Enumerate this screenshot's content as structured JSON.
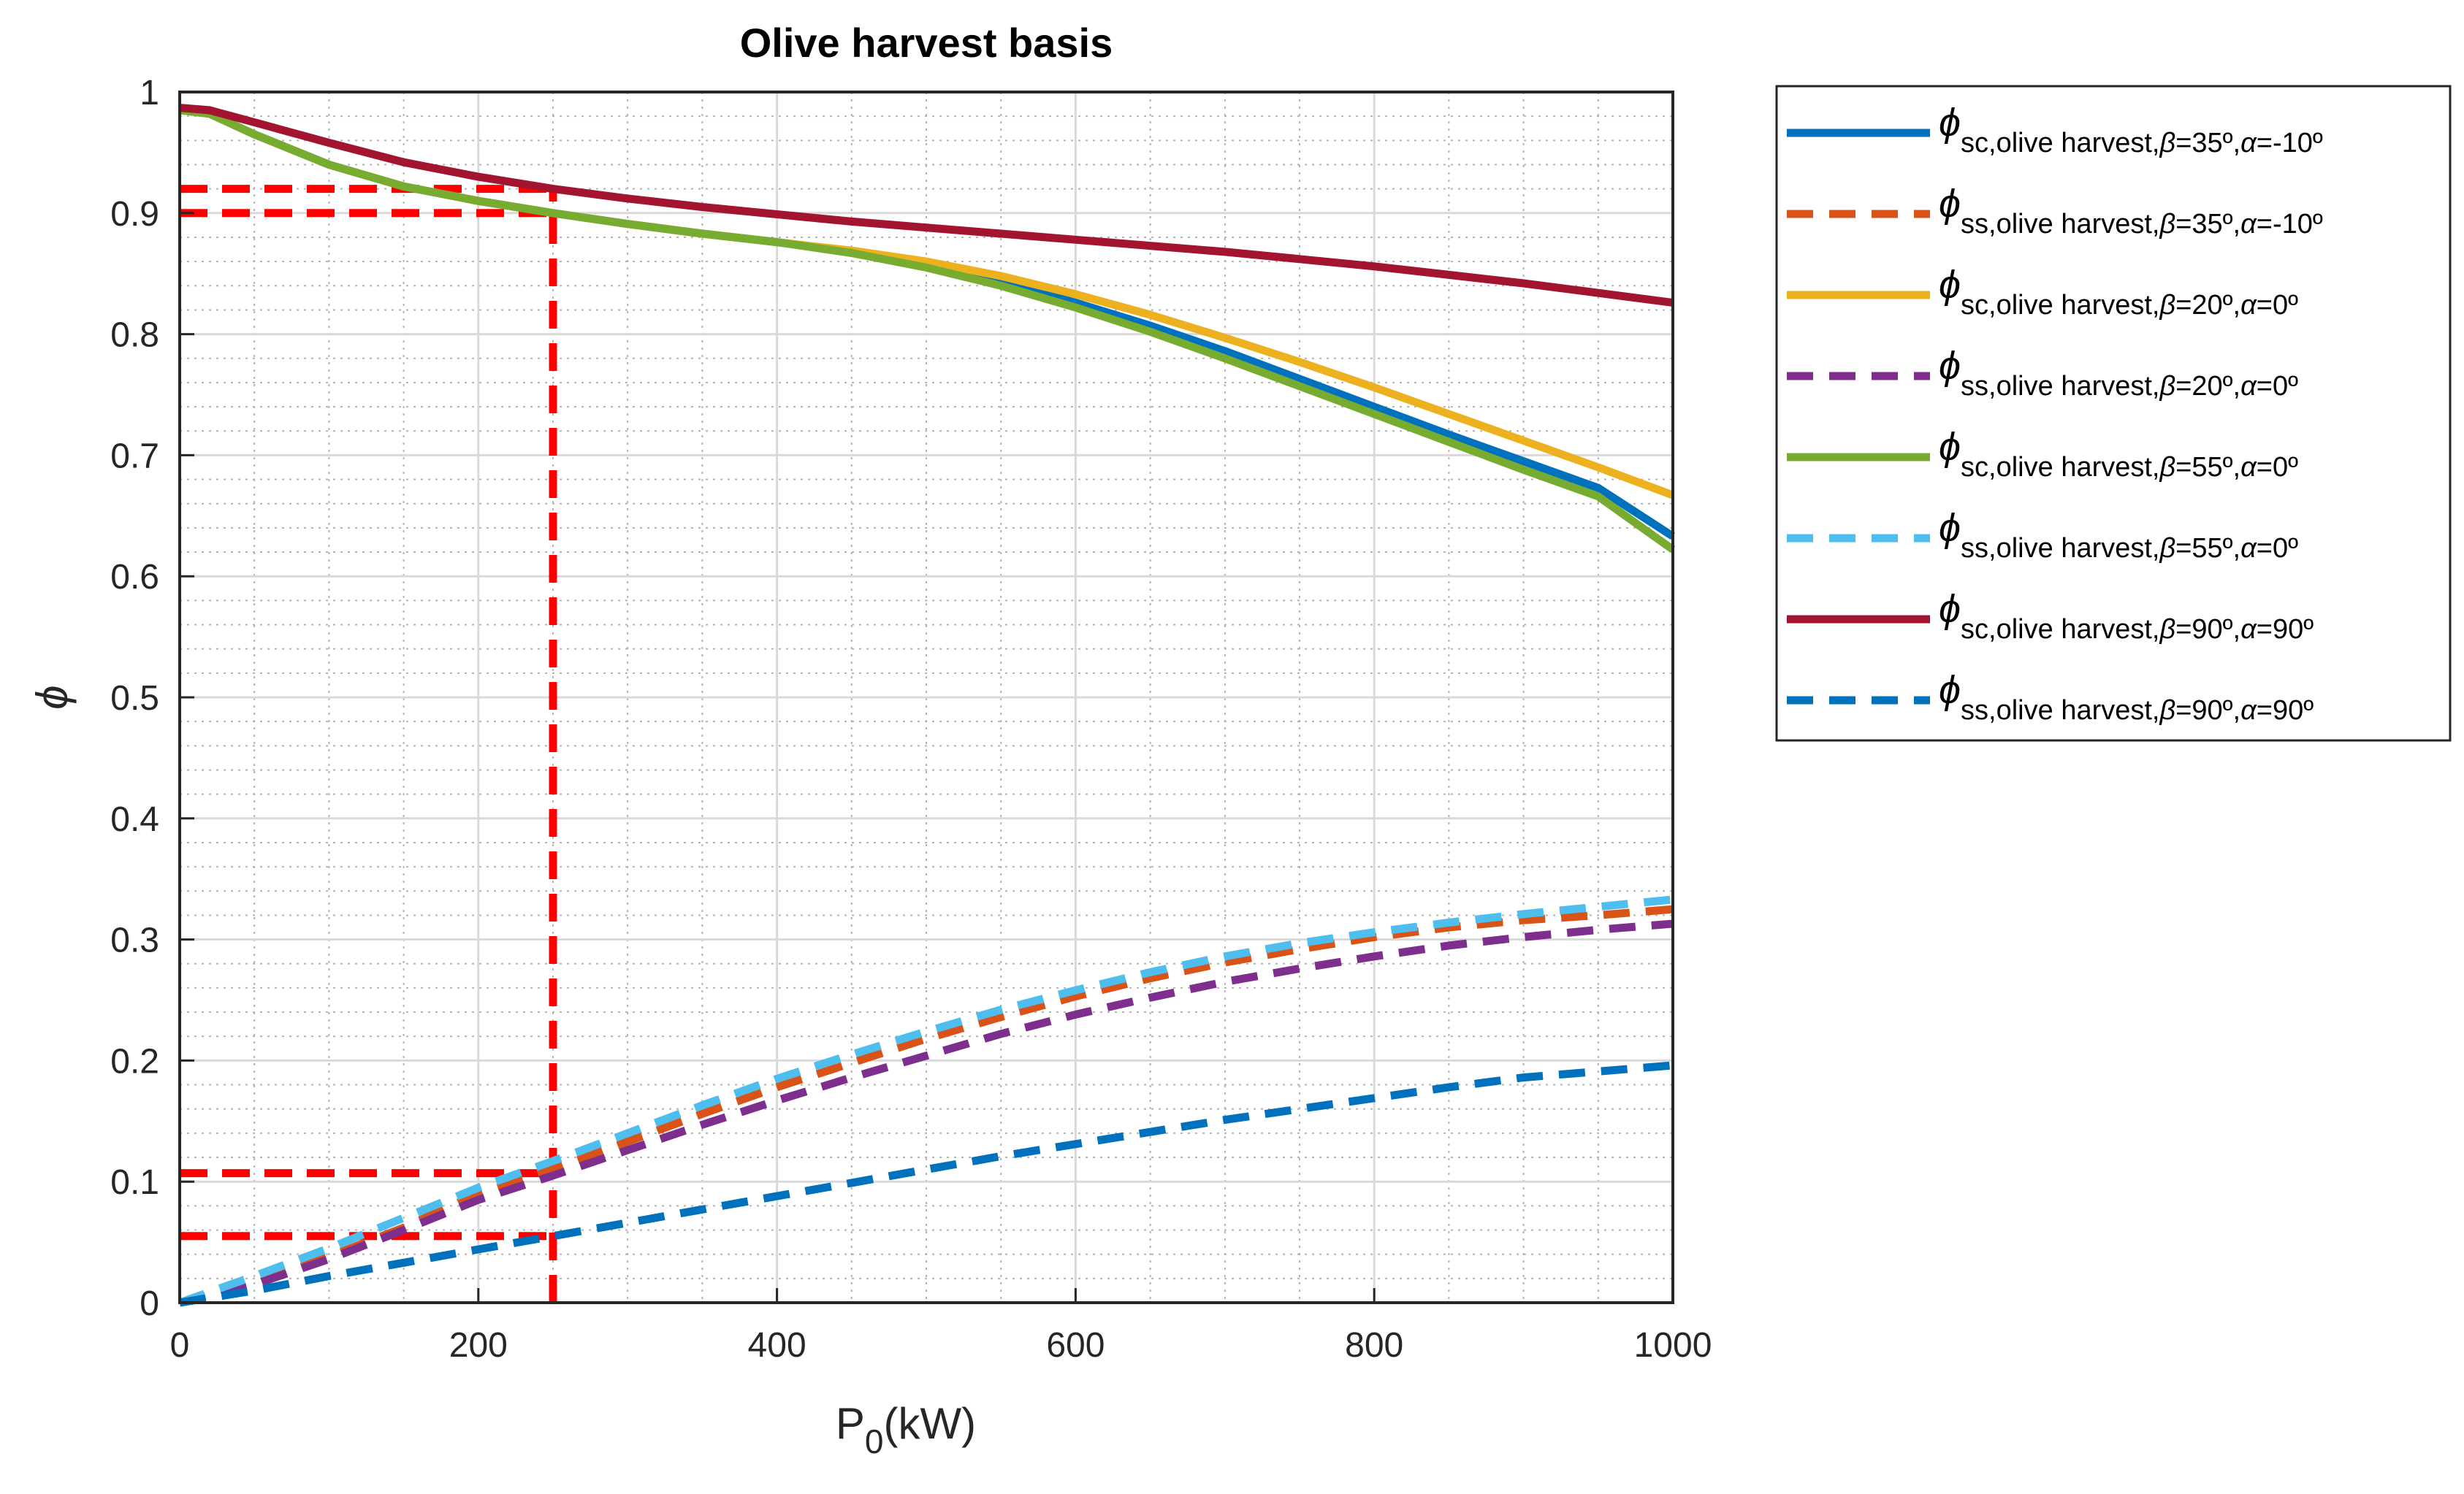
{
  "chart_data": {
    "type": "line",
    "title": "Olive harvest basis",
    "xlabel": {
      "main": "P",
      "sub": "0",
      "rest": "(kW)"
    },
    "ylabel": "ϕ",
    "xlim": [
      0,
      1000
    ],
    "ylim": [
      0,
      1
    ],
    "x_ticks": [
      0,
      200,
      400,
      600,
      800,
      1000
    ],
    "x_tick_labels": [
      "0",
      "200",
      "400",
      "600",
      "800",
      "1000"
    ],
    "y_ticks": [
      0,
      0.1,
      0.2,
      0.3,
      0.4,
      0.5,
      0.6,
      0.7,
      0.8,
      0.9,
      1
    ],
    "y_tick_labels": [
      "0",
      "0.1",
      "0.2",
      "0.3",
      "0.4",
      "0.5",
      "0.6",
      "0.7",
      "0.8",
      "0.9",
      "1"
    ],
    "grid": true,
    "minor_grid": true,
    "legend_position": "outside-right",
    "series": [
      {
        "name": "ϕ sc,olive harvest,β=35º,α=-10º",
        "sym": "ϕ",
        "sub_pre": "sc,olive harvest,",
        "beta": "β",
        "beta_val": "=35º,",
        "alpha": "α",
        "alpha_val": "=-10º",
        "style": "solid",
        "color": "#0072BD",
        "x": [
          0,
          20,
          50,
          100,
          150,
          200,
          250,
          300,
          350,
          400,
          450,
          500,
          550,
          600,
          650,
          700,
          750,
          800,
          850,
          900,
          950,
          1000
        ],
        "y": [
          0.985,
          0.982,
          0.965,
          0.94,
          0.922,
          0.91,
          0.9,
          0.891,
          0.883,
          0.876,
          0.868,
          0.857,
          0.843,
          0.826,
          0.807,
          0.786,
          0.763,
          0.74,
          0.717,
          0.695,
          0.673,
          0.633
        ]
      },
      {
        "name": "ϕ ss,olive harvest,β=35º,α=-10º",
        "sym": "ϕ",
        "sub_pre": "ss,olive harvest,",
        "beta": "β",
        "beta_val": "=35º,",
        "alpha": "α",
        "alpha_val": "=-10º",
        "style": "dashed",
        "color": "#D95319",
        "x": [
          0,
          50,
          100,
          150,
          200,
          250,
          300,
          350,
          400,
          450,
          500,
          550,
          600,
          650,
          700,
          750,
          800,
          850,
          900,
          950,
          1000
        ],
        "y": [
          0.0,
          0.015,
          0.038,
          0.062,
          0.09,
          0.11,
          0.133,
          0.156,
          0.178,
          0.198,
          0.218,
          0.236,
          0.253,
          0.268,
          0.281,
          0.292,
          0.302,
          0.31,
          0.316,
          0.32,
          0.325
        ]
      },
      {
        "name": "ϕ sc,olive harvest,β=20º,α=0º",
        "sym": "ϕ",
        "sub_pre": "sc,olive harvest,",
        "beta": "β",
        "beta_val": "=20º,",
        "alpha": "α",
        "alpha_val": "=0º",
        "style": "solid",
        "color": "#EDB120",
        "x": [
          0,
          20,
          50,
          100,
          150,
          200,
          250,
          300,
          350,
          400,
          450,
          500,
          550,
          600,
          650,
          700,
          750,
          800,
          850,
          900,
          950,
          1000
        ],
        "y": [
          0.985,
          0.982,
          0.965,
          0.94,
          0.922,
          0.91,
          0.9,
          0.891,
          0.883,
          0.876,
          0.869,
          0.86,
          0.848,
          0.833,
          0.816,
          0.797,
          0.777,
          0.756,
          0.734,
          0.712,
          0.69,
          0.667
        ]
      },
      {
        "name": "ϕ ss,olive harvest,β=20º,α=0º",
        "sym": "ϕ",
        "sub_pre": "ss,olive harvest,",
        "beta": "β",
        "beta_val": "=20º,",
        "alpha": "α",
        "alpha_val": "=0º",
        "style": "dashed",
        "color": "#7E2F8E",
        "x": [
          0,
          50,
          100,
          150,
          200,
          250,
          300,
          350,
          400,
          450,
          500,
          550,
          600,
          650,
          700,
          750,
          800,
          850,
          900,
          950,
          1000
        ],
        "y": [
          0.0,
          0.015,
          0.036,
          0.06,
          0.085,
          0.105,
          0.126,
          0.147,
          0.167,
          0.186,
          0.204,
          0.222,
          0.238,
          0.252,
          0.265,
          0.276,
          0.286,
          0.295,
          0.302,
          0.308,
          0.313
        ]
      },
      {
        "name": "ϕ sc,olive harvest,β=55º,α=0º",
        "sym": "ϕ",
        "sub_pre": "sc,olive harvest,",
        "beta": "β",
        "beta_val": "=55º,",
        "alpha": "α",
        "alpha_val": "=0º",
        "style": "solid",
        "color": "#77AC30",
        "x": [
          0,
          20,
          50,
          100,
          150,
          200,
          250,
          300,
          350,
          400,
          450,
          500,
          550,
          600,
          650,
          700,
          750,
          800,
          850,
          900,
          950,
          1000
        ],
        "y": [
          0.985,
          0.982,
          0.965,
          0.94,
          0.922,
          0.91,
          0.9,
          0.891,
          0.883,
          0.876,
          0.867,
          0.855,
          0.84,
          0.822,
          0.802,
          0.78,
          0.757,
          0.734,
          0.711,
          0.688,
          0.666,
          0.622
        ]
      },
      {
        "name": "ϕ ss,olive harvest,β=55º,α=0º",
        "sym": "ϕ",
        "sub_pre": "ss,olive harvest,",
        "beta": "β",
        "beta_val": "=55º,",
        "alpha": "α",
        "alpha_val": "=0º",
        "style": "dashed",
        "color": "#4DBEEE",
        "x": [
          0,
          50,
          100,
          150,
          200,
          250,
          300,
          350,
          400,
          450,
          500,
          550,
          600,
          650,
          700,
          750,
          800,
          850,
          900,
          950,
          1000
        ],
        "y": [
          0.0,
          0.022,
          0.045,
          0.07,
          0.095,
          0.117,
          0.14,
          0.163,
          0.185,
          0.205,
          0.224,
          0.242,
          0.258,
          0.273,
          0.286,
          0.297,
          0.306,
          0.314,
          0.321,
          0.327,
          0.333
        ]
      },
      {
        "name": "ϕ sc,olive harvest,β=90º,α=90º",
        "sym": "ϕ",
        "sub_pre": "sc,olive harvest,",
        "beta": "β",
        "beta_val": "=90º,",
        "alpha": "α",
        "alpha_val": "=90º",
        "style": "solid",
        "color": "#A2142F",
        "x": [
          0,
          20,
          50,
          100,
          150,
          200,
          250,
          300,
          350,
          400,
          450,
          500,
          550,
          600,
          650,
          700,
          750,
          800,
          850,
          900,
          950,
          1000
        ],
        "y": [
          0.987,
          0.985,
          0.975,
          0.958,
          0.942,
          0.93,
          0.92,
          0.912,
          0.905,
          0.899,
          0.893,
          0.888,
          0.883,
          0.878,
          0.873,
          0.868,
          0.862,
          0.856,
          0.849,
          0.842,
          0.834,
          0.826
        ]
      },
      {
        "name": "ϕ ss,olive harvest,β=90º,α=90º",
        "sym": "ϕ",
        "sub_pre": "ss,olive harvest,",
        "beta": "β",
        "beta_val": "=90º,",
        "alpha": "α",
        "alpha_val": "=90º",
        "style": "dashed",
        "color": "#0072BD",
        "x": [
          0,
          50,
          100,
          150,
          200,
          250,
          300,
          350,
          400,
          450,
          500,
          550,
          600,
          650,
          700,
          750,
          800,
          850,
          900,
          950,
          1000
        ],
        "y": [
          0.0,
          0.01,
          0.022,
          0.033,
          0.044,
          0.055,
          0.066,
          0.077,
          0.088,
          0.099,
          0.11,
          0.121,
          0.131,
          0.141,
          0.151,
          0.16,
          0.169,
          0.178,
          0.186,
          0.191,
          0.196
        ]
      }
    ],
    "reference_lines": {
      "color": "#FF0000",
      "vertical": {
        "x": 250,
        "y_from": 0,
        "y_to": 0.92
      },
      "horizontal": [
        {
          "y": 0.92,
          "x_from": 0,
          "x_to": 250
        },
        {
          "y": 0.9,
          "x_from": 0,
          "x_to": 250
        },
        {
          "y": 0.107,
          "x_from": 0,
          "x_to": 250
        },
        {
          "y": 0.055,
          "x_from": 0,
          "x_to": 250
        }
      ]
    }
  }
}
